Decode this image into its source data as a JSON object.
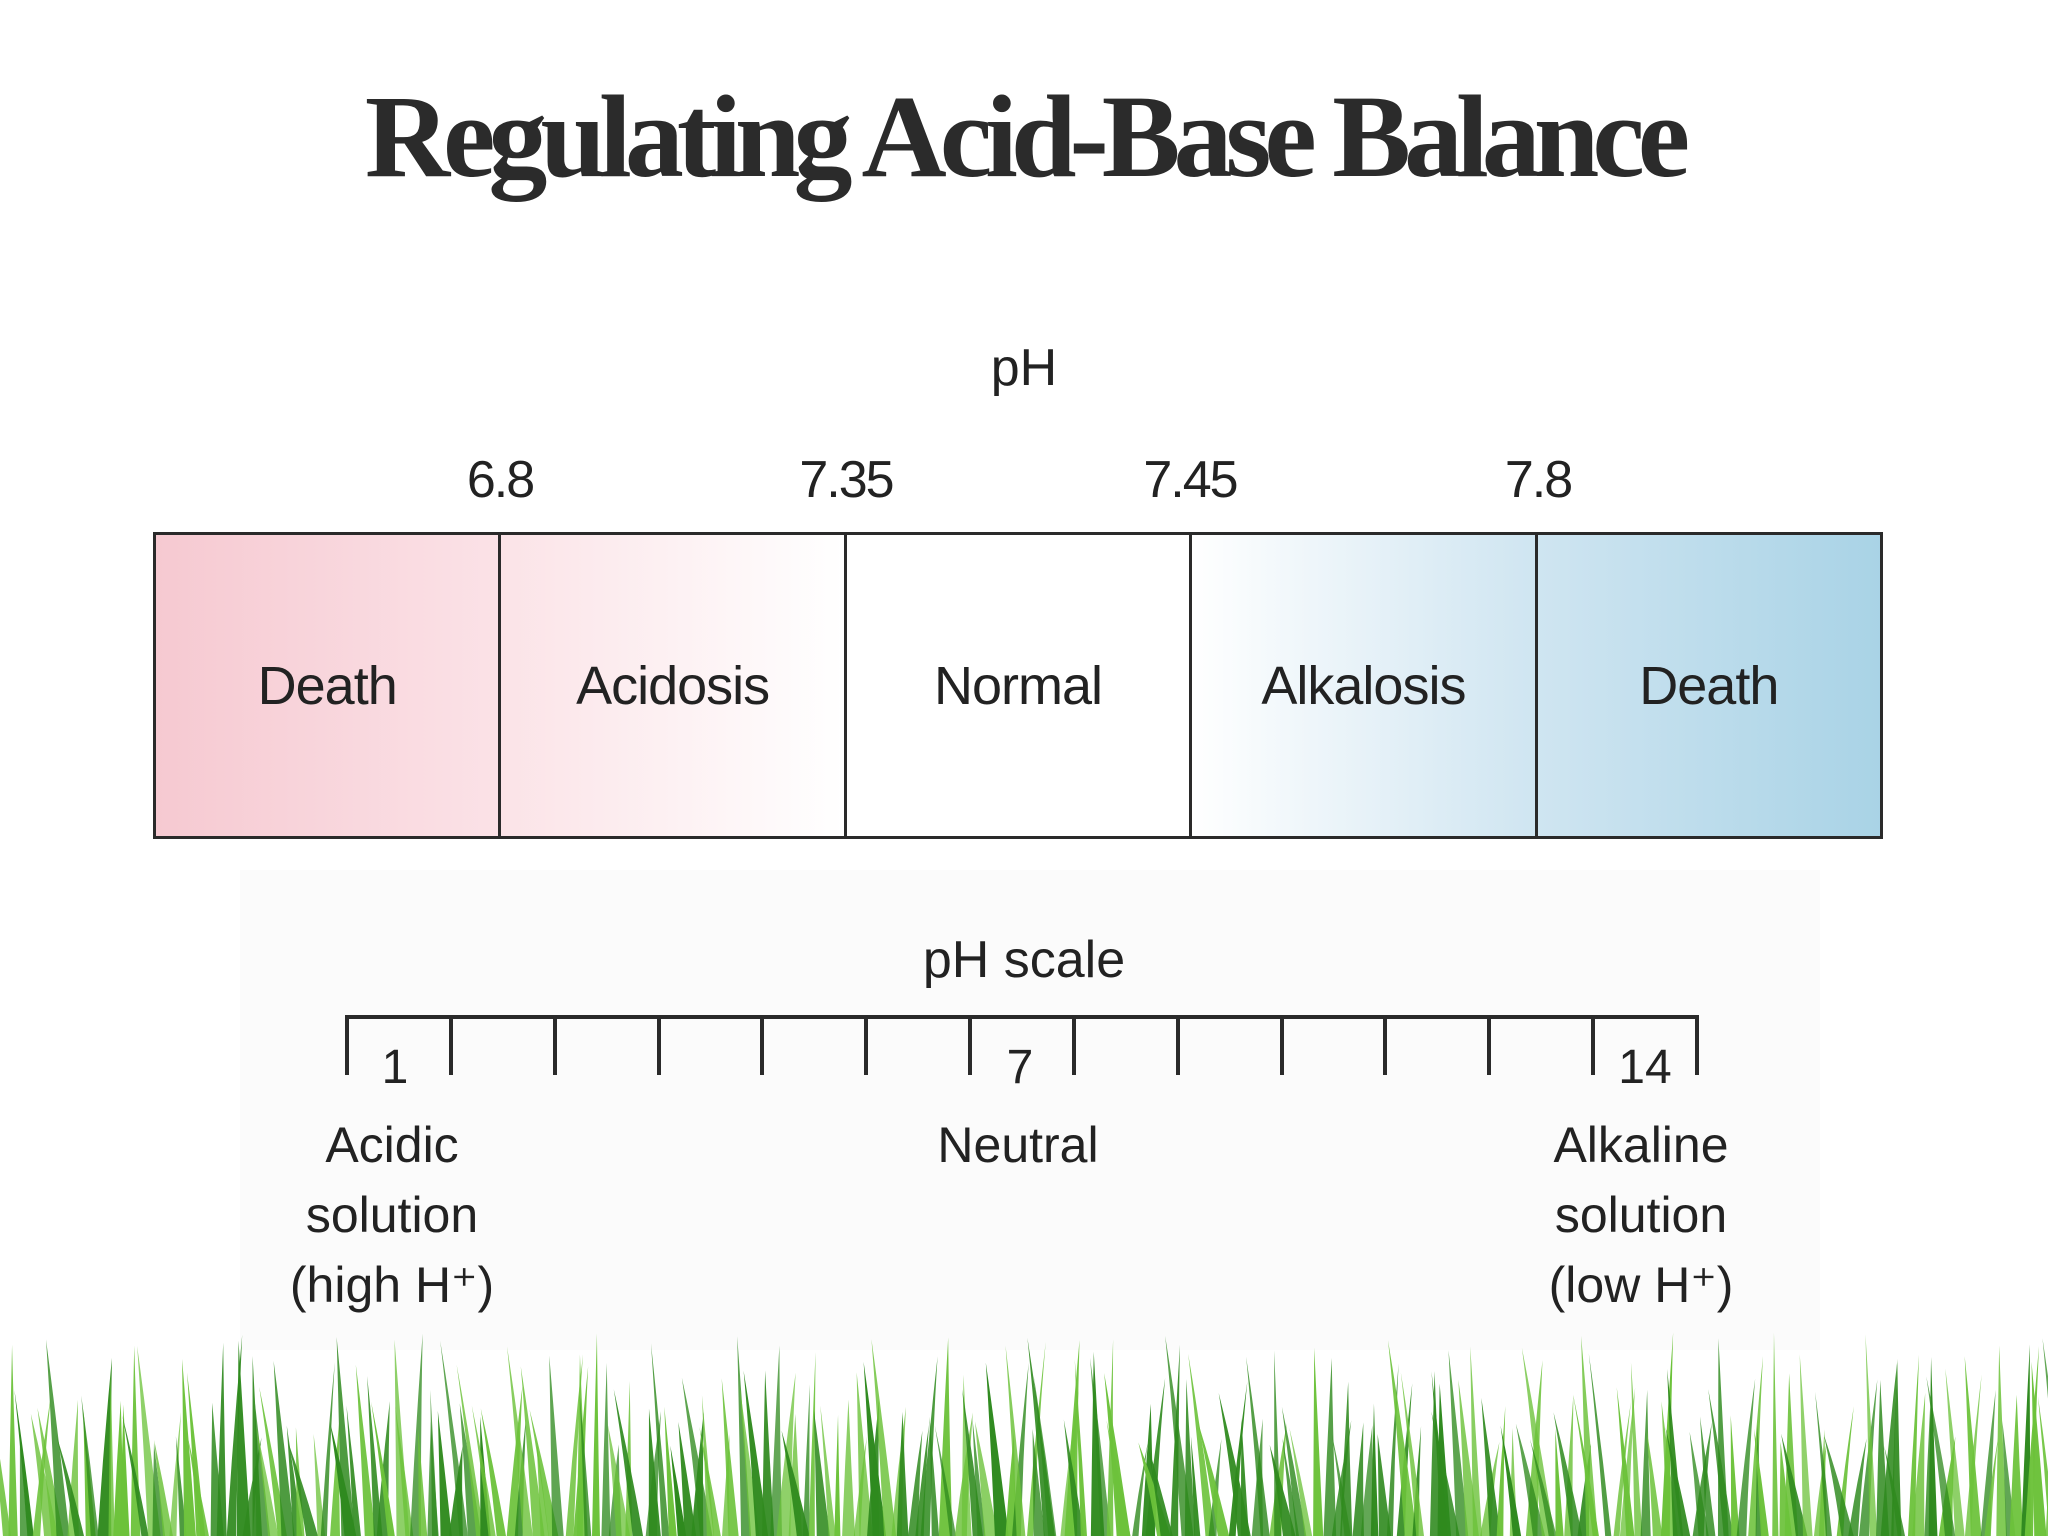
{
  "title": "Regulating Acid-Base Balance",
  "ph_chart": {
    "axis_label": "pH",
    "thresholds": [
      "6.8",
      "7.35",
      "7.45",
      "7.8"
    ],
    "zones": [
      {
        "label": "Death",
        "color": "#f6c9d1"
      },
      {
        "label": "Acidosis",
        "color": "#fbe3e7"
      },
      {
        "label": "Normal",
        "color": "#ffffff"
      },
      {
        "label": "Alkalosis",
        "color": "#cfe5f1"
      },
      {
        "label": "Death",
        "color": "#a9d3e6"
      }
    ]
  },
  "ph_scale": {
    "title": "pH scale",
    "min": 1,
    "max": 14,
    "labels": {
      "low": {
        "number": "1",
        "lines": [
          "Acidic",
          "solution",
          "(high H⁺)"
        ]
      },
      "mid": {
        "number": "7",
        "lines": [
          "Neutral"
        ]
      },
      "high": {
        "number": "14",
        "lines": [
          "Alkaline",
          "solution",
          "(low H⁺)"
        ]
      }
    }
  },
  "colors": {
    "grass_dark": "#2f8a1e",
    "grass_light": "#6cc23a"
  }
}
